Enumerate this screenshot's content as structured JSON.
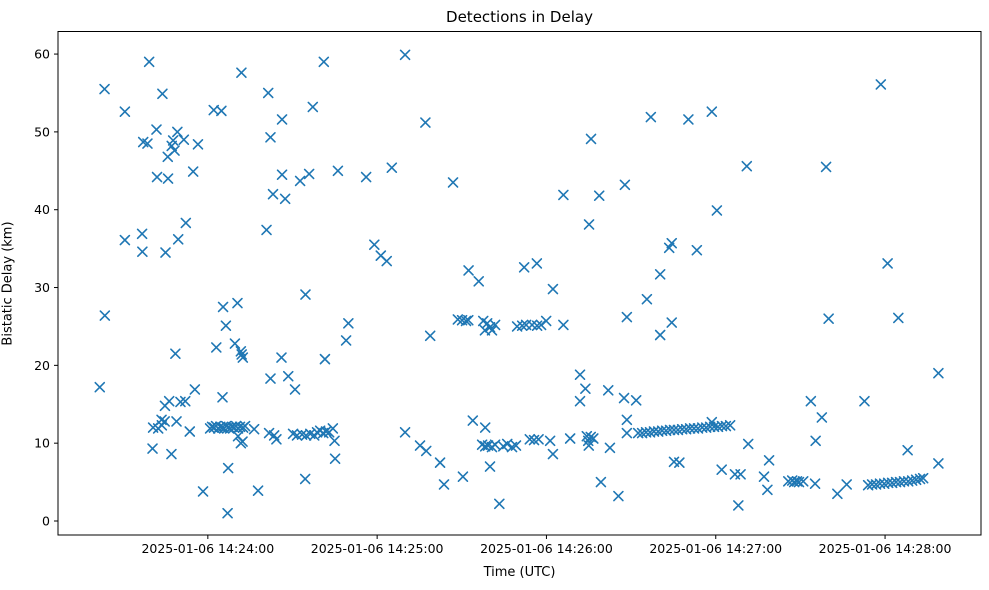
{
  "figure": {
    "title": "Detections in Delay",
    "background_color": "#ffffff",
    "axis_color": "#000000"
  },
  "chart_data": {
    "type": "scatter",
    "title": "Detections in Delay",
    "xlabel": "Time (UTC)",
    "ylabel": "Bistatic Delay (km)",
    "marker": "x",
    "marker_color": "#1f77b4",
    "marker_size": 9,
    "grid": false,
    "legend": "none",
    "x_unit": "seconds after 2025-01-06 14:23:00 UTC",
    "xlim": [
      6.9,
      334.0
    ],
    "ylim": [
      -1.8,
      62.9
    ],
    "x_ticks": [
      {
        "t": 60,
        "label": "2025-01-06 14:24:00"
      },
      {
        "t": 120,
        "label": "2025-01-06 14:25:00"
      },
      {
        "t": 180,
        "label": "2025-01-06 14:26:00"
      },
      {
        "t": 240,
        "label": "2025-01-06 14:27:00"
      },
      {
        "t": 300,
        "label": "2025-01-06 14:28:00"
      }
    ],
    "y_ticks": [
      0,
      10,
      20,
      30,
      40,
      50,
      60
    ],
    "points": [
      [
        39.2,
        59.0
      ],
      [
        71.9,
        57.6
      ],
      [
        23.4,
        55.5
      ],
      [
        43.9,
        54.9
      ],
      [
        81.4,
        55.0
      ],
      [
        30.6,
        52.6
      ],
      [
        62.1,
        52.8
      ],
      [
        64.8,
        52.7
      ],
      [
        86.3,
        51.6
      ],
      [
        41.8,
        50.3
      ],
      [
        49.2,
        50.0
      ],
      [
        37.1,
        48.7
      ],
      [
        38.6,
        48.5
      ],
      [
        47.7,
        48.9
      ],
      [
        51.5,
        49.0
      ],
      [
        47.2,
        48.2
      ],
      [
        48.2,
        47.6
      ],
      [
        56.5,
        48.4
      ],
      [
        45.8,
        46.8
      ],
      [
        54.8,
        44.9
      ],
      [
        42.0,
        44.2
      ],
      [
        45.9,
        44.0
      ],
      [
        82.2,
        49.3
      ],
      [
        83.1,
        42.0
      ],
      [
        86.3,
        44.5
      ],
      [
        87.4,
        41.4
      ],
      [
        129.9,
        59.9
      ],
      [
        101.1,
        59.0
      ],
      [
        97.2,
        53.2
      ],
      [
        137.1,
        51.2
      ],
      [
        125.2,
        45.4
      ],
      [
        106.1,
        45.0
      ],
      [
        116.1,
        44.2
      ],
      [
        95.9,
        44.6
      ],
      [
        92.7,
        43.7
      ],
      [
        146.9,
        43.5
      ],
      [
        217.0,
        51.9
      ],
      [
        230.3,
        51.6
      ],
      [
        238.6,
        52.6
      ],
      [
        195.8,
        49.1
      ],
      [
        251.0,
        45.6
      ],
      [
        207.8,
        43.2
      ],
      [
        186.0,
        41.9
      ],
      [
        198.7,
        41.8
      ],
      [
        298.5,
        56.1
      ],
      [
        279.1,
        45.5
      ],
      [
        52.2,
        38.3
      ],
      [
        36.7,
        36.9
      ],
      [
        30.6,
        36.1
      ],
      [
        49.5,
        36.2
      ],
      [
        36.8,
        34.6
      ],
      [
        45.0,
        34.5
      ],
      [
        80.8,
        37.4
      ],
      [
        23.5,
        26.4
      ],
      [
        65.4,
        27.5
      ],
      [
        70.5,
        28.0
      ],
      [
        66.4,
        25.1
      ],
      [
        63.0,
        22.3
      ],
      [
        69.6,
        22.8
      ],
      [
        71.7,
        21.8
      ],
      [
        72.0,
        21.4
      ],
      [
        72.4,
        21.0
      ],
      [
        48.5,
        21.5
      ],
      [
        86.1,
        21.0
      ],
      [
        119.0,
        35.5
      ],
      [
        121.3,
        34.1
      ],
      [
        123.4,
        33.4
      ],
      [
        152.4,
        32.2
      ],
      [
        156.0,
        30.8
      ],
      [
        94.6,
        29.1
      ],
      [
        109.8,
        25.4
      ],
      [
        109.0,
        23.2
      ],
      [
        101.5,
        20.8
      ],
      [
        138.8,
        23.8
      ],
      [
        148.6,
        25.9
      ],
      [
        150.1,
        25.8
      ],
      [
        151.5,
        25.7
      ],
      [
        152.3,
        25.8
      ],
      [
        157.6,
        25.7
      ],
      [
        159.0,
        25.4
      ],
      [
        160.0,
        24.9
      ],
      [
        158.2,
        24.5
      ],
      [
        160.7,
        24.5
      ],
      [
        161.8,
        25.2
      ],
      [
        240.4,
        39.9
      ],
      [
        195.1,
        38.1
      ],
      [
        224.4,
        35.7
      ],
      [
        223.5,
        35.1
      ],
      [
        233.3,
        34.8
      ],
      [
        220.3,
        31.7
      ],
      [
        176.6,
        33.1
      ],
      [
        172.1,
        32.6
      ],
      [
        182.3,
        29.8
      ],
      [
        215.6,
        28.5
      ],
      [
        208.5,
        26.2
      ],
      [
        186.0,
        25.2
      ],
      [
        224.4,
        25.5
      ],
      [
        220.3,
        23.9
      ],
      [
        169.6,
        25.0
      ],
      [
        171.4,
        25.1
      ],
      [
        172.8,
        25.2
      ],
      [
        174.9,
        25.2
      ],
      [
        176.7,
        25.1
      ],
      [
        178.1,
        25.2
      ],
      [
        179.9,
        25.7
      ],
      [
        300.9,
        33.1
      ],
      [
        280.0,
        26.0
      ],
      [
        304.7,
        26.1
      ],
      [
        21.7,
        17.2
      ],
      [
        82.2,
        18.3
      ],
      [
        55.4,
        16.9
      ],
      [
        65.2,
        15.9
      ],
      [
        44.8,
        14.8
      ],
      [
        46.3,
        15.4
      ],
      [
        50.3,
        15.3
      ],
      [
        52.0,
        15.4
      ],
      [
        43.6,
        13.0
      ],
      [
        44.7,
        12.8
      ],
      [
        48.9,
        12.8
      ],
      [
        40.6,
        12.0
      ],
      [
        42.4,
        11.9
      ],
      [
        43.7,
        12.3
      ],
      [
        53.6,
        11.5
      ],
      [
        40.4,
        9.3
      ],
      [
        47.1,
        8.6
      ],
      [
        60.8,
        11.9
      ],
      [
        61.5,
        12.1
      ],
      [
        62.2,
        12.0
      ],
      [
        62.9,
        12.2
      ],
      [
        63.7,
        11.9
      ],
      [
        64.4,
        12.1
      ],
      [
        65.1,
        12.0
      ],
      [
        65.8,
        11.9
      ],
      [
        66.5,
        12.2
      ],
      [
        67.2,
        12.0
      ],
      [
        67.9,
        11.9
      ],
      [
        68.6,
        12.1
      ],
      [
        69.3,
        12.0
      ],
      [
        70.0,
        12.2
      ],
      [
        70.7,
        11.9
      ],
      [
        71.4,
        12.1
      ],
      [
        72.5,
        12.0
      ],
      [
        73.2,
        12.2
      ],
      [
        70.7,
        10.9
      ],
      [
        72.3,
        10.2
      ],
      [
        71.7,
        10.0
      ],
      [
        76.4,
        11.8
      ],
      [
        81.7,
        11.3
      ],
      [
        83.5,
        11.0
      ],
      [
        84.3,
        10.5
      ],
      [
        67.2,
        6.8
      ],
      [
        58.3,
        3.8
      ],
      [
        77.8,
        3.9
      ],
      [
        67.0,
        1.0
      ],
      [
        88.5,
        18.6
      ],
      [
        90.9,
        16.9
      ],
      [
        90.2,
        11.2
      ],
      [
        91.6,
        11.0
      ],
      [
        93.4,
        11.1
      ],
      [
        94.8,
        11.0
      ],
      [
        96.3,
        11.2
      ],
      [
        97.7,
        11.0
      ],
      [
        98.7,
        11.4
      ],
      [
        99.8,
        11.6
      ],
      [
        100.9,
        11.3
      ],
      [
        101.9,
        11.5
      ],
      [
        103.0,
        11.4
      ],
      [
        104.3,
        11.9
      ],
      [
        104.9,
        10.3
      ],
      [
        105.1,
        8.0
      ],
      [
        94.5,
        5.4
      ],
      [
        129.9,
        11.4
      ],
      [
        135.2,
        9.7
      ],
      [
        137.4,
        9.0
      ],
      [
        142.3,
        7.5
      ],
      [
        143.7,
        4.7
      ],
      [
        150.4,
        5.7
      ],
      [
        153.9,
        12.9
      ],
      [
        158.3,
        12.0
      ],
      [
        157.2,
        9.8
      ],
      [
        158.3,
        9.6
      ],
      [
        159.3,
        9.7
      ],
      [
        160.7,
        9.5
      ],
      [
        161.8,
        9.8
      ],
      [
        164.7,
        9.6
      ],
      [
        166.1,
        9.9
      ],
      [
        167.8,
        9.5
      ],
      [
        169.2,
        9.7
      ],
      [
        160.0,
        7.0
      ],
      [
        163.3,
        2.2
      ],
      [
        191.9,
        18.8
      ],
      [
        193.8,
        17.0
      ],
      [
        191.9,
        15.4
      ],
      [
        201.9,
        16.8
      ],
      [
        207.5,
        15.8
      ],
      [
        211.8,
        15.5
      ],
      [
        208.5,
        13.0
      ],
      [
        208.5,
        11.3
      ],
      [
        174.1,
        10.5
      ],
      [
        175.6,
        10.4
      ],
      [
        177.2,
        10.5
      ],
      [
        181.3,
        10.3
      ],
      [
        182.3,
        8.6
      ],
      [
        188.4,
        10.6
      ],
      [
        194.3,
        10.9
      ],
      [
        195.7,
        10.8
      ],
      [
        194.8,
        10.3
      ],
      [
        196.6,
        10.6
      ],
      [
        195.0,
        9.7
      ],
      [
        202.5,
        9.4
      ],
      [
        212.5,
        11.3
      ],
      [
        213.9,
        11.3
      ],
      [
        215.3,
        11.4
      ],
      [
        216.7,
        11.4
      ],
      [
        218.1,
        11.5
      ],
      [
        219.6,
        11.5
      ],
      [
        221.0,
        11.6
      ],
      [
        222.4,
        11.6
      ],
      [
        223.8,
        11.7
      ],
      [
        225.2,
        11.7
      ],
      [
        226.6,
        11.7
      ],
      [
        228.1,
        11.8
      ],
      [
        229.5,
        11.8
      ],
      [
        230.9,
        11.9
      ],
      [
        232.3,
        11.9
      ],
      [
        233.7,
        11.9
      ],
      [
        235.2,
        12.0
      ],
      [
        236.6,
        12.0
      ],
      [
        238.0,
        12.1
      ],
      [
        239.4,
        12.1
      ],
      [
        240.8,
        12.1
      ],
      [
        242.2,
        12.2
      ],
      [
        243.6,
        12.2
      ],
      [
        245.1,
        12.3
      ],
      [
        238.6,
        12.7
      ],
      [
        225.2,
        7.6
      ],
      [
        227.1,
        7.5
      ],
      [
        242.1,
        6.6
      ],
      [
        246.8,
        6.0
      ],
      [
        248.8,
        6.0
      ],
      [
        248.0,
        2.0
      ],
      [
        199.3,
        5.0
      ],
      [
        205.5,
        3.2
      ],
      [
        318.9,
        19.0
      ],
      [
        273.7,
        15.4
      ],
      [
        292.7,
        15.4
      ],
      [
        277.6,
        13.3
      ],
      [
        275.4,
        10.3
      ],
      [
        251.5,
        9.9
      ],
      [
        258.9,
        7.8
      ],
      [
        308.0,
        9.1
      ],
      [
        318.9,
        7.4
      ],
      [
        257.1,
        5.7
      ],
      [
        258.3,
        4.0
      ],
      [
        265.7,
        5.1
      ],
      [
        267.1,
        5.2
      ],
      [
        267.8,
        5.0
      ],
      [
        268.8,
        5.1
      ],
      [
        269.5,
        5.0
      ],
      [
        271.0,
        5.1
      ],
      [
        275.2,
        4.8
      ],
      [
        283.1,
        3.5
      ],
      [
        286.4,
        4.7
      ],
      [
        294.0,
        4.6
      ],
      [
        295.4,
        4.7
      ],
      [
        296.8,
        4.7
      ],
      [
        298.2,
        4.8
      ],
      [
        299.7,
        4.8
      ],
      [
        301.1,
        4.9
      ],
      [
        302.5,
        4.9
      ],
      [
        303.9,
        5.0
      ],
      [
        305.3,
        5.0
      ],
      [
        306.7,
        5.1
      ],
      [
        308.2,
        5.1
      ],
      [
        309.6,
        5.2
      ],
      [
        311.0,
        5.3
      ],
      [
        312.4,
        5.4
      ],
      [
        313.5,
        5.5
      ]
    ]
  }
}
